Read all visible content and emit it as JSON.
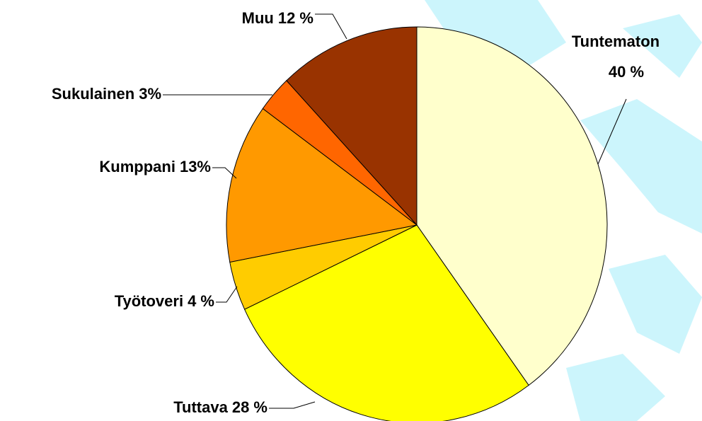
{
  "chart_data": {
    "type": "pie",
    "categories": [
      "Tuntematon",
      "Tuttava",
      "Työtoveri",
      "Kumppani",
      "Sukulainen",
      "Muu"
    ],
    "values": [
      40,
      28,
      4,
      13,
      3,
      12
    ],
    "value_labels": [
      "40 %",
      "28 %",
      "4 %",
      "13%",
      "3%",
      "12 %"
    ],
    "colors": [
      "#ffffcc",
      "#ffff00",
      "#ffcc00",
      "#ff9900",
      "#ff6600",
      "#993300"
    ]
  }
}
